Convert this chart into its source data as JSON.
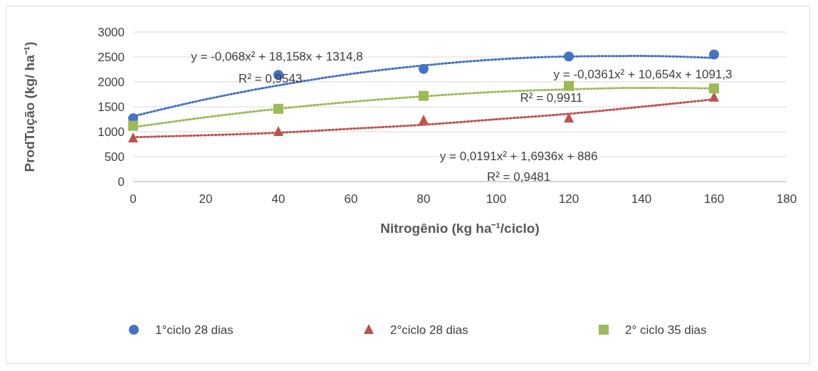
{
  "chart_data": {
    "type": "scatter",
    "ylabel": "ProdTução (kg/ ha⁻¹)",
    "xlabel": "Nitrogênio (kg ha⁻¹/ciclo)",
    "xlim": [
      0,
      180
    ],
    "xticks": [
      0,
      20,
      40,
      60,
      80,
      100,
      120,
      140,
      160,
      180
    ],
    "ylim": [
      0,
      3000
    ],
    "yticks": [
      0,
      500,
      1000,
      1500,
      2000,
      2500,
      3000
    ],
    "grid": "y",
    "legend": "bottom",
    "x": [
      0,
      40,
      80,
      120,
      160
    ],
    "series": [
      {
        "name": "1°ciclo 28 dias",
        "color": "#4472c4",
        "marker": "circle",
        "values": [
          1270,
          2140,
          2260,
          2510,
          2550
        ]
      },
      {
        "name": "2°ciclo 28 dias",
        "color": "#c0504d",
        "marker": "triangle",
        "values": [
          870,
          1000,
          1230,
          1270,
          1690
        ]
      },
      {
        "name": "2° ciclo 35 dias",
        "color": "#9bbb59",
        "marker": "square",
        "values": [
          1120,
          1460,
          1720,
          1920,
          1870
        ]
      },
      {
        "type": "line",
        "line_style": "dotted",
        "color": "#4472c4",
        "x": [
          0,
          20,
          40,
          60,
          80,
          100,
          120,
          140,
          160
        ],
        "values": [
          1310,
          1650,
          1930,
          2160,
          2330,
          2450,
          2510,
          2520,
          2480
        ]
      },
      {
        "type": "line",
        "line_style": "dotted",
        "color": "#c0504d",
        "x": [
          0,
          20,
          40,
          60,
          80,
          100,
          120,
          140,
          160
        ],
        "values": [
          890,
          930,
          980,
          1060,
          1140,
          1250,
          1360,
          1500,
          1650
        ]
      },
      {
        "type": "line",
        "line_style": "dotted",
        "color": "#9bbb59",
        "x": [
          0,
          20,
          40,
          60,
          80,
          100,
          120,
          140,
          160
        ],
        "values": [
          1090,
          1290,
          1460,
          1600,
          1710,
          1800,
          1850,
          1880,
          1870
        ]
      }
    ],
    "annotations": [
      "y = -0,068x² + 18,158x + 1314,8",
      "R² = 0,9543",
      "y = -0,0361x² + 10,654x + 1091,3",
      "R² = 0,9911",
      "y = 0,0191x² + 1,6936x + 886",
      "R² = 0,9481"
    ]
  }
}
